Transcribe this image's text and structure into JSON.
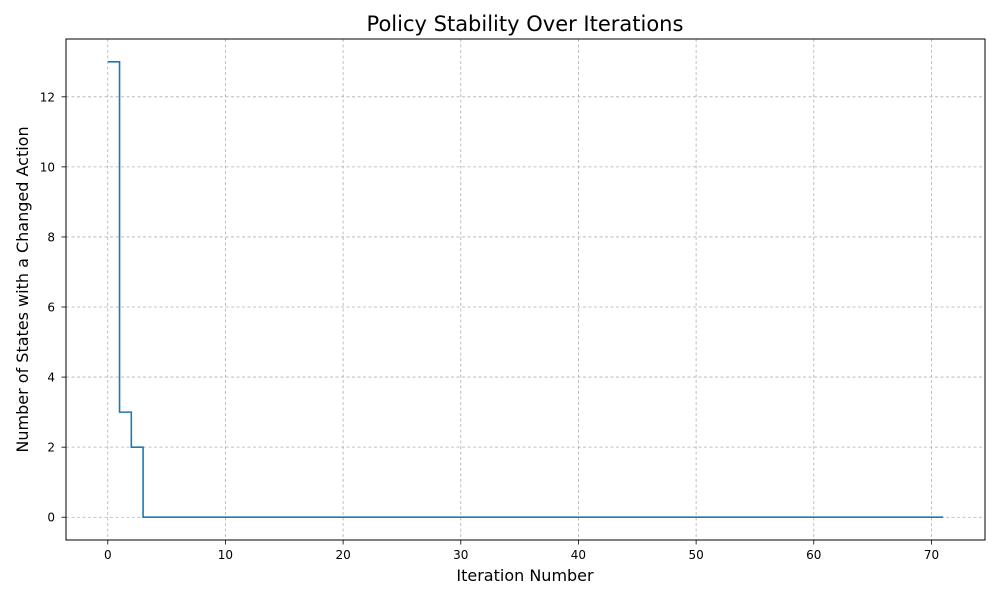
{
  "chart_data": {
    "type": "line",
    "step": "post",
    "title": "Policy Stability Over Iterations",
    "xlabel": "Iteration Number",
    "ylabel": "Number of States with a Changed Action",
    "xlim": [
      -3.55,
      74.55
    ],
    "ylim": [
      -0.65,
      13.65
    ],
    "xticks": [
      0,
      10,
      20,
      30,
      40,
      50,
      60,
      70
    ],
    "yticks": [
      0,
      2,
      4,
      6,
      8,
      10,
      12
    ],
    "grid": true,
    "grid_style": "dashed",
    "line_color": "#1f77b4",
    "series": [
      {
        "x": [
          0,
          1,
          2,
          3,
          4,
          5,
          6,
          7,
          8,
          9,
          10,
          11,
          12,
          13,
          14,
          15,
          16,
          17,
          18,
          19,
          20,
          21,
          22,
          23,
          24,
          25,
          26,
          27,
          28,
          29,
          30,
          31,
          32,
          33,
          34,
          35,
          36,
          37,
          38,
          39,
          40,
          41,
          42,
          43,
          44,
          45,
          46,
          47,
          48,
          49,
          50,
          51,
          52,
          53,
          54,
          55,
          56,
          57,
          58,
          59,
          60,
          61,
          62,
          63,
          64,
          65,
          66,
          67,
          68,
          69,
          70,
          71
        ],
        "values": [
          13,
          3,
          2,
          0,
          0,
          0,
          0,
          0,
          0,
          0,
          0,
          0,
          0,
          0,
          0,
          0,
          0,
          0,
          0,
          0,
          0,
          0,
          0,
          0,
          0,
          0,
          0,
          0,
          0,
          0,
          0,
          0,
          0,
          0,
          0,
          0,
          0,
          0,
          0,
          0,
          0,
          0,
          0,
          0,
          0,
          0,
          0,
          0,
          0,
          0,
          0,
          0,
          0,
          0,
          0,
          0,
          0,
          0,
          0,
          0,
          0,
          0,
          0,
          0,
          0,
          0,
          0,
          0,
          0,
          0,
          0,
          0
        ]
      }
    ]
  }
}
